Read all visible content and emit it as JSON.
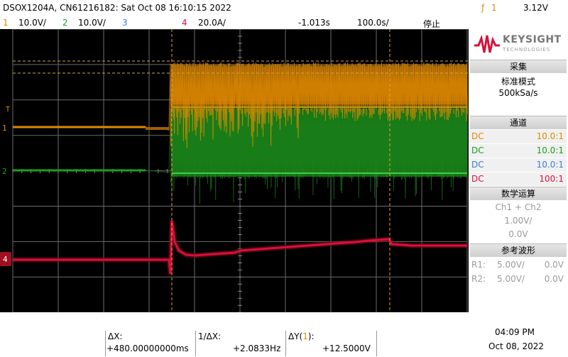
{
  "header": {
    "model_info": "DSOX1204A, CN61216182: Sat Oct 08 16:10:15 2022",
    "trigger_level": "3.12V"
  },
  "channels_bar": {
    "ch1_num": "1",
    "ch1_scale": "10.0V/",
    "ch2_num": "2",
    "ch2_scale": "10.0V/",
    "ch3_num": "3",
    "ch4_num": "4",
    "ch4_scale": "20.0A/",
    "time_offset": "-1.013s",
    "time_scale": "100.0s/",
    "status": "停止",
    "trig_ch": "1"
  },
  "colors": {
    "ch1": "#e08a00",
    "ch2": "#1aa01a",
    "ch3": "#3a7fd0",
    "ch4": "#d8103a",
    "grid_bg": "#000000"
  },
  "side_panel": {
    "logo_main": "KEYSIGHT",
    "logo_sub": "TECHNOLOGIES",
    "acquire_title": "采集",
    "acquire_mode": "标准模式",
    "acquire_rate": "500kSa/s",
    "channels_title": "通道",
    "channels": [
      {
        "coupling": "DC",
        "probe": "10.0:1"
      },
      {
        "coupling": "DC",
        "probe": "10.0:1"
      },
      {
        "coupling": "DC",
        "probe": "10.0:1"
      },
      {
        "coupling": "DC",
        "probe": "100:1"
      }
    ],
    "math_title": "数学运算",
    "math_expr": "Ch1 + Ch2",
    "math_scale": "1.00V/",
    "math_offset": "0.0V",
    "ref_title": "参考波形",
    "refs": [
      {
        "name": "R1:",
        "scale": "5.00V/",
        "offset": "0.0V"
      },
      {
        "name": "R2:",
        "scale": "5.00V/",
        "offset": "0.0V"
      }
    ]
  },
  "cursors": {
    "dx_label": "ΔX:",
    "dx_value": "+480.00000000ms",
    "inv_dx_label": "1/ΔX:",
    "inv_dx_value": "+2.0833Hz",
    "dy_label": "ΔY(",
    "dy_ch": "1",
    "dy_label_end": "):",
    "dy_value": "+12.5000V"
  },
  "clock": {
    "time": "04:09 PM",
    "date": "Oct 08, 2022"
  },
  "markers": {
    "trigger": "T",
    "ch1": "1",
    "ch2": "2",
    "ch4": "4"
  }
}
